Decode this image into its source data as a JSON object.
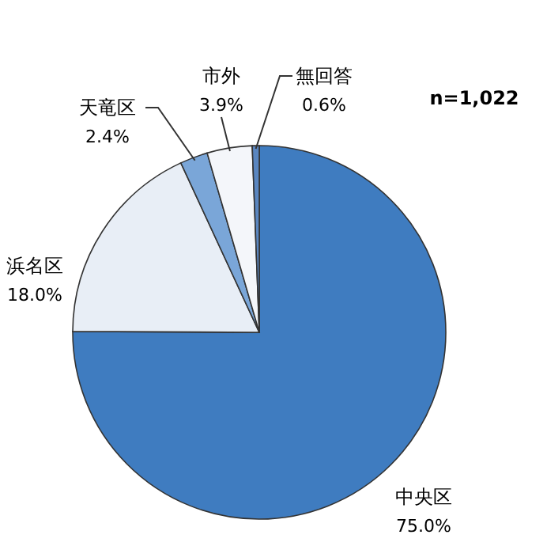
{
  "chart_data": {
    "type": "pie",
    "categories": [
      "中央区",
      "浜名区",
      "天竜区",
      "市外",
      "無回答"
    ],
    "values": [
      75.0,
      18.0,
      2.4,
      3.9,
      0.6
    ],
    "value_labels": [
      "75.0%",
      "18.0%",
      "2.4%",
      "3.9%",
      "0.6%"
    ],
    "colors": [
      "#3f7cc0",
      "#e8eef6",
      "#7aa6d8",
      "#f4f6fa",
      "#5a86c0"
    ],
    "annotations": [
      "n=1,022"
    ]
  }
}
